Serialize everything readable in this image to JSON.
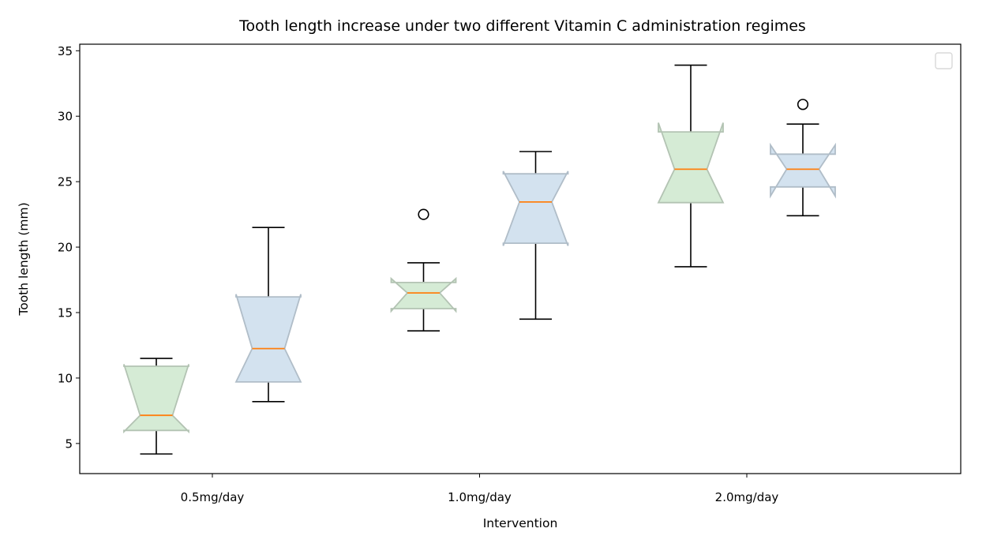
{
  "chart_data": {
    "type": "box",
    "notched": true,
    "title": "Tooth length increase under two different Vitamin C administration regimes",
    "xlabel": "Intervention",
    "ylabel": "Tooth length (mm)",
    "categories": [
      "0.5mg/day",
      "1.0mg/day",
      "2.0mg/day"
    ],
    "ylim": [
      2.7,
      35.5
    ],
    "yticks": [
      5,
      10,
      15,
      20,
      25,
      30,
      35
    ],
    "legend": {
      "placement": "top-right",
      "entries": []
    },
    "series": [
      {
        "color": "#d5ebd5",
        "edge_color": "#b3c3b3",
        "boxes": [
          {
            "category": "0.5mg/day",
            "whislo": 4.2,
            "q1": 6.0,
            "notch_lo": 5.9,
            "med": 7.15,
            "notch_hi": 11.05,
            "q3": 10.9,
            "whishi": 11.5,
            "fliers": []
          },
          {
            "category": "1.0mg/day",
            "whislo": 13.6,
            "q1": 15.3,
            "notch_lo": 15.1,
            "med": 16.5,
            "notch_hi": 17.6,
            "q3": 17.3,
            "whishi": 18.8,
            "fliers": [
              22.5
            ]
          },
          {
            "category": "2.0mg/day",
            "whislo": 18.5,
            "q1": 23.4,
            "notch_lo": 23.4,
            "med": 25.95,
            "notch_hi": 29.5,
            "q3": 28.8,
            "whishi": 33.9,
            "fliers": []
          }
        ]
      },
      {
        "color": "#d3e2ef",
        "edge_color": "#b0bdc8",
        "boxes": [
          {
            "category": "0.5mg/day",
            "whislo": 8.2,
            "q1": 9.7,
            "notch_lo": 9.7,
            "med": 12.25,
            "notch_hi": 16.4,
            "q3": 16.2,
            "whishi": 21.5,
            "fliers": []
          },
          {
            "category": "1.0mg/day",
            "whislo": 14.5,
            "q1": 20.3,
            "notch_lo": 20.1,
            "med": 23.45,
            "notch_hi": 25.8,
            "q3": 25.6,
            "whishi": 27.3,
            "fliers": []
          },
          {
            "category": "2.0mg/day",
            "whislo": 22.4,
            "q1": 24.6,
            "notch_lo": 23.9,
            "med": 25.95,
            "notch_hi": 27.8,
            "q3": 27.1,
            "whishi": 29.4,
            "fliers": [
              30.9
            ]
          }
        ]
      }
    ]
  }
}
